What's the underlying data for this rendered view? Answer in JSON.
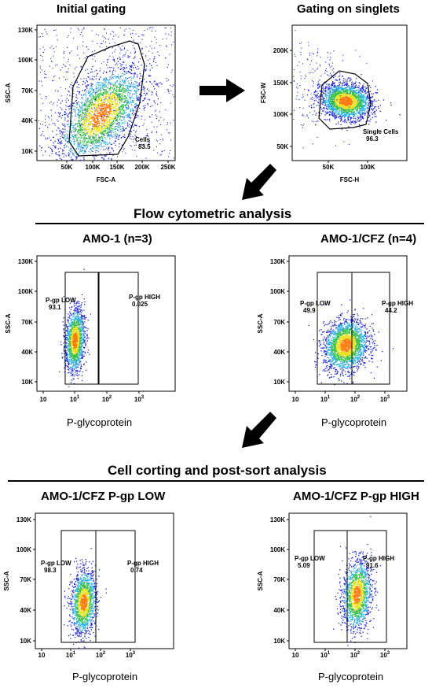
{
  "titles": {
    "initial_gating": "Initial gating",
    "singlets": "Gating on singlets",
    "flow_analysis": "Flow cytometric analysis",
    "amo1": "AMO-1 (n=3)",
    "amo1cfz": "AMO-1/CFZ (n=4)",
    "sort": "Cell corting and post-sort analysis",
    "low": "AMO-1/CFZ P-gp LOW",
    "high": "AMO-1/CFZ P-gp HIGH"
  },
  "colors": {
    "low": "#1a22d8",
    "mid1": "#2ab0e0",
    "mid2": "#37c04a",
    "mid3": "#e8e020",
    "high": "#ff7a10"
  },
  "chart_data": [
    {
      "type": "scatter",
      "id": "initial",
      "xlabel": "FSC-A",
      "ylabel": "SSC-A",
      "xticks": [
        "50K",
        "100K",
        "150K",
        "200K",
        "250K"
      ],
      "yticks": [
        "10K",
        "40K",
        "70K",
        "100K",
        "130K"
      ],
      "gates": [
        {
          "name": "Cells",
          "value": "83.5"
        }
      ]
    },
    {
      "type": "scatter",
      "id": "singlets",
      "xlabel": "FSC-H",
      "ylabel": "FSC-W",
      "xticks": [
        "50K",
        "100K"
      ],
      "yticks": [
        "50K",
        "100K",
        "150K",
        "200K"
      ],
      "gates": [
        {
          "name": "Single Cells",
          "value": "96.3"
        }
      ]
    },
    {
      "type": "scatter",
      "id": "amo1",
      "log_x": true,
      "xlabel": "P-glycoprotein",
      "ylabel": "SSC-A",
      "xticks": [
        "10",
        "10",
        "10",
        "10"
      ],
      "xexp": [
        "",
        "1",
        "2",
        "3"
      ],
      "yticks": [
        "10K",
        "40K",
        "70K",
        "100K",
        "130K"
      ],
      "gates": [
        {
          "name": "P-gp LOW",
          "value": "93.1"
        },
        {
          "name": "P-gp HIGH",
          "value": "0.025"
        }
      ]
    },
    {
      "type": "scatter",
      "id": "amo1cfz",
      "log_x": true,
      "xlabel": "P-glycoprotein",
      "ylabel": "SSC-A",
      "xticks": [
        "10",
        "10",
        "10",
        "10"
      ],
      "xexp": [
        "",
        "1",
        "2",
        "3"
      ],
      "yticks": [
        "10K",
        "40K",
        "70K",
        "100K",
        "130K"
      ],
      "gates": [
        {
          "name": "P-gp LOW",
          "value": "49.9"
        },
        {
          "name": "P-gp HIGH",
          "value": "44.2"
        }
      ]
    },
    {
      "type": "scatter",
      "id": "low",
      "log_x": true,
      "xlabel": "P-glycoprotein",
      "ylabel": "SSC-A",
      "xticks": [
        "10",
        "10",
        "10",
        "10"
      ],
      "xexp": [
        "",
        "1",
        "2",
        "3"
      ],
      "yticks": [
        "10K",
        "40K",
        "70K",
        "100K",
        "130K"
      ],
      "gates": [
        {
          "name": "P-gp LOW",
          "value": "98.3"
        },
        {
          "name": "P-gp HIGH",
          "value": "0.74"
        }
      ]
    },
    {
      "type": "scatter",
      "id": "high",
      "log_x": true,
      "xlabel": "P-glycoprotein",
      "ylabel": "SSC-A",
      "xticks": [
        "10",
        "10",
        "10",
        "10"
      ],
      "xexp": [
        "",
        "1",
        "2",
        "3"
      ],
      "yticks": [
        "10K",
        "40K",
        "70K",
        "100K",
        "130K"
      ],
      "gates": [
        {
          "name": "P-gp LOW",
          "value": "5.09"
        },
        {
          "name": "P-gp HIGH",
          "value": "91.6"
        }
      ]
    }
  ]
}
